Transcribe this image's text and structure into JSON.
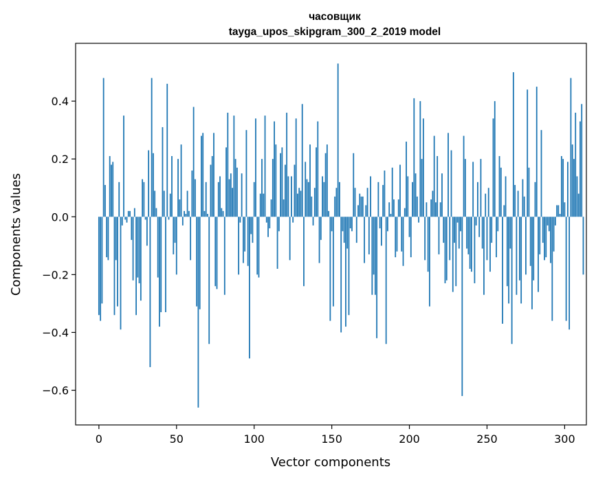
{
  "chart_data": {
    "type": "bar",
    "title": "часовщик",
    "subtitle": "tayga_upos_skipgram_300_2_2019 model",
    "xlabel": "Vector components",
    "ylabel": "Components values",
    "xlim": [
      -15,
      314
    ],
    "ylim": [
      -0.72,
      0.6
    ],
    "x_ticks": [
      0,
      50,
      100,
      150,
      200,
      250,
      300
    ],
    "y_ticks": [
      -0.6,
      -0.4,
      -0.2,
      0.0,
      0.2,
      0.4
    ],
    "y_tick_labels": [
      "−0.6",
      "−0.4",
      "−0.2",
      "0.0",
      "0.2",
      "0.4"
    ],
    "grid": false,
    "bar_color": "#1f77b4",
    "values": [
      -0.34,
      -0.36,
      -0.3,
      0.48,
      0.11,
      -0.14,
      -0.15,
      0.21,
      0.18,
      0.19,
      -0.34,
      -0.15,
      -0.31,
      0.12,
      -0.39,
      -0.03,
      0.35,
      -0.01,
      -0.02,
      0.02,
      0.02,
      -0.08,
      -0.22,
      0.03,
      -0.34,
      -0.21,
      -0.23,
      -0.29,
      0.13,
      0.12,
      -0.01,
      -0.1,
      0.23,
      -0.52,
      0.48,
      0.22,
      0.09,
      0.03,
      -0.21,
      -0.38,
      -0.33,
      0.31,
      0.09,
      -0.33,
      0.46,
      -0.01,
      0.08,
      0.21,
      -0.13,
      -0.09,
      -0.2,
      0.2,
      0.06,
      0.25,
      -0.03,
      0.02,
      0.01,
      0.09,
      0.02,
      -0.15,
      0.16,
      0.38,
      0.13,
      -0.31,
      -0.66,
      -0.32,
      0.28,
      0.29,
      0.02,
      0.12,
      0.01,
      -0.44,
      0.18,
      0.21,
      0.29,
      -0.24,
      -0.25,
      0.12,
      0.14,
      0.03,
      0.02,
      -0.27,
      0.24,
      0.36,
      0.13,
      0.15,
      0.1,
      0.35,
      0.2,
      0.17,
      -0.2,
      -0.02,
      0.15,
      -0.16,
      -0.12,
      0.3,
      -0.17,
      -0.49,
      -0.06,
      -0.09,
      0.12,
      0.34,
      -0.2,
      -0.21,
      0.08,
      0.2,
      0.08,
      0.35,
      -0.02,
      -0.07,
      -0.04,
      0.06,
      0.2,
      0.33,
      0.25,
      -0.18,
      -0.05,
      0.22,
      0.24,
      0.06,
      0.18,
      0.36,
      0.14,
      -0.15,
      0.14,
      -0.02,
      0.18,
      0.34,
      0.08,
      0.1,
      0.09,
      0.39,
      -0.24,
      0.19,
      0.13,
      0.12,
      0.25,
      0.07,
      -0.03,
      0.1,
      0.24,
      0.33,
      -0.16,
      -0.08,
      0.14,
      0.12,
      0.22,
      0.25,
      0.02,
      -0.36,
      -0.05,
      -0.31,
      0.07,
      0.1,
      0.53,
      0.12,
      -0.4,
      -0.05,
      -0.09,
      -0.38,
      -0.11,
      -0.34,
      -0.04,
      -0.05,
      0.22,
      0.1,
      -0.09,
      0.04,
      0.08,
      0.07,
      0.07,
      -0.16,
      0.04,
      0.1,
      -0.13,
      0.14,
      -0.27,
      -0.2,
      -0.27,
      -0.42,
      0.12,
      -0.04,
      -0.1,
      0.11,
      0.16,
      -0.44,
      -0.05,
      0.05,
      0.01,
      0.17,
      0.06,
      -0.14,
      -0.12,
      0.06,
      0.18,
      -0.12,
      -0.17,
      0.03,
      0.26,
      0.14,
      -0.07,
      -0.14,
      0.12,
      0.41,
      0.15,
      0.07,
      -0.02,
      0.4,
      0.2,
      0.34,
      -0.15,
      0.05,
      -0.19,
      -0.31,
      0.06,
      0.09,
      0.28,
      0.05,
      0.21,
      -0.13,
      0.05,
      0.15,
      -0.09,
      -0.23,
      -0.22,
      0.29,
      -0.15,
      0.23,
      -0.26,
      -0.09,
      -0.24,
      -0.02,
      -0.11,
      -0.05,
      -0.62,
      0.28,
      0.2,
      -0.11,
      -0.13,
      -0.18,
      -0.19,
      0.19,
      -0.23,
      -0.03,
      0.12,
      -0.07,
      0.2,
      -0.11,
      -0.27,
      0.08,
      -0.15,
      0.1,
      -0.19,
      -0.09,
      0.34,
      0.4,
      -0.14,
      -0.05,
      0.21,
      0.17,
      -0.37,
      0.04,
      0.14,
      -0.24,
      -0.3,
      -0.11,
      -0.44,
      0.5,
      0.11,
      -0.27,
      0.09,
      -0.22,
      -0.3,
      0.13,
      0.07,
      -0.2,
      0.44,
      0.17,
      -0.17,
      -0.32,
      -0.22,
      0.12,
      0.45,
      -0.26,
      -0.13,
      0.3,
      -0.09,
      -0.15,
      -0.14,
      -0.03,
      -0.05,
      -0.16,
      -0.36,
      -0.12,
      -0.03,
      0.04,
      0.04,
      0.01,
      0.21,
      0.2,
      0.05,
      -0.36,
      0.19,
      -0.39,
      0.48,
      0.25,
      0.2,
      0.36,
      0.14,
      0.08,
      0.33,
      0.39,
      -0.2
    ]
  }
}
